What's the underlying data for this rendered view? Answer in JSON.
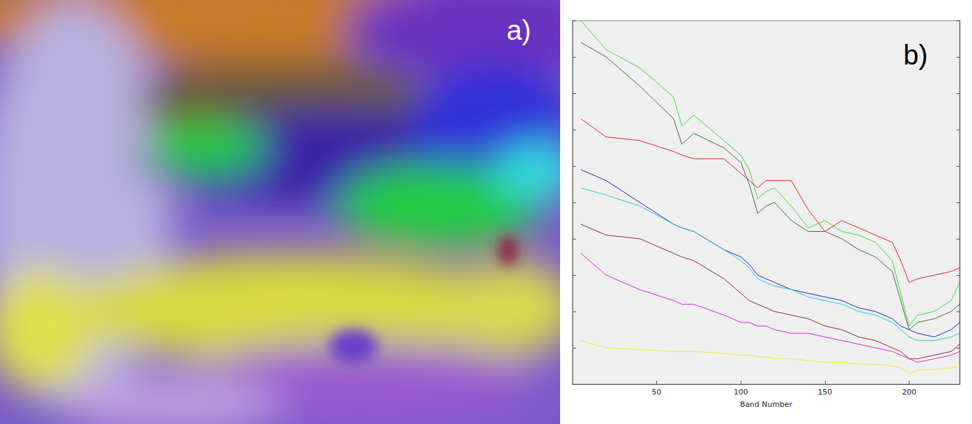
{
  "panel_labels": [
    "a)",
    "b)"
  ],
  "chart_data": {
    "type": "line",
    "x_label": "Band Number",
    "x": [
      5,
      20,
      40,
      60,
      65,
      72,
      90,
      100,
      105,
      110,
      115,
      120,
      130,
      140,
      150,
      160,
      170,
      180,
      190,
      195,
      200,
      205,
      215,
      225,
      230
    ],
    "series": [
      {
        "color": "#33dd33",
        "values": [
          1.0,
          0.92,
          0.87,
          0.79,
          0.71,
          0.74,
          0.67,
          0.63,
          0.59,
          0.51,
          0.53,
          0.54,
          0.49,
          0.43,
          0.45,
          0.42,
          0.41,
          0.39,
          0.34,
          0.25,
          0.16,
          0.19,
          0.2,
          0.23,
          0.28
        ]
      },
      {
        "color": "#3a6a3a",
        "values": [
          0.94,
          0.9,
          0.82,
          0.73,
          0.66,
          0.69,
          0.65,
          0.61,
          0.55,
          0.47,
          0.49,
          0.5,
          0.45,
          0.42,
          0.42,
          0.4,
          0.37,
          0.35,
          0.31,
          0.23,
          0.15,
          0.17,
          0.18,
          0.2,
          0.22
        ]
      },
      {
        "color": "#e02020",
        "values": [
          0.73,
          0.68,
          0.67,
          0.64,
          0.63,
          0.62,
          0.62,
          0.58,
          0.56,
          0.54,
          0.56,
          0.56,
          0.56,
          0.48,
          0.42,
          0.45,
          0.43,
          0.41,
          0.39,
          0.34,
          0.28,
          0.29,
          0.3,
          0.31,
          0.32
        ]
      },
      {
        "color": "#2222cc",
        "values": [
          0.59,
          0.56,
          0.5,
          0.44,
          0.43,
          0.42,
          0.37,
          0.35,
          0.33,
          0.3,
          0.29,
          0.28,
          0.26,
          0.25,
          0.24,
          0.23,
          0.21,
          0.2,
          0.18,
          0.16,
          0.15,
          0.14,
          0.13,
          0.15,
          0.17
        ]
      },
      {
        "color": "#22cccc",
        "values": [
          0.54,
          0.52,
          0.49,
          0.44,
          0.43,
          0.42,
          0.37,
          0.34,
          0.32,
          0.29,
          0.28,
          0.27,
          0.26,
          0.24,
          0.23,
          0.22,
          0.2,
          0.19,
          0.17,
          0.15,
          0.13,
          0.12,
          0.12,
          0.13,
          0.14
        ]
      },
      {
        "color": "#8b2a2a",
        "values": [
          0.44,
          0.41,
          0.4,
          0.36,
          0.35,
          0.34,
          0.29,
          0.25,
          0.23,
          0.22,
          0.21,
          0.2,
          0.19,
          0.18,
          0.16,
          0.15,
          0.13,
          0.12,
          0.1,
          0.09,
          0.07,
          0.07,
          0.08,
          0.09,
          0.11
        ]
      },
      {
        "color": "#dd22dd",
        "values": [
          0.36,
          0.3,
          0.26,
          0.23,
          0.22,
          0.22,
          0.19,
          0.17,
          0.17,
          0.16,
          0.16,
          0.15,
          0.14,
          0.14,
          0.13,
          0.12,
          0.11,
          0.1,
          0.09,
          0.08,
          0.07,
          0.06,
          0.07,
          0.08,
          0.09
        ]
      },
      {
        "color": "#eeee22",
        "values": [
          0.12,
          0.1,
          0.095,
          0.09,
          0.09,
          0.09,
          0.085,
          0.08,
          0.08,
          0.075,
          0.075,
          0.07,
          0.07,
          0.065,
          0.06,
          0.06,
          0.055,
          0.055,
          0.05,
          0.045,
          0.03,
          0.04,
          0.04,
          0.045,
          0.05
        ]
      }
    ],
    "xlim": [
      0,
      230
    ],
    "xticks": [
      50,
      100,
      150,
      200
    ],
    "ylim": [
      0,
      1
    ],
    "yticks": [
      0,
      0.1,
      0.2,
      0.3,
      0.4,
      0.5,
      0.6,
      0.7,
      0.8,
      0.9,
      1
    ],
    "tick_labels": "x",
    "grid": false
  }
}
